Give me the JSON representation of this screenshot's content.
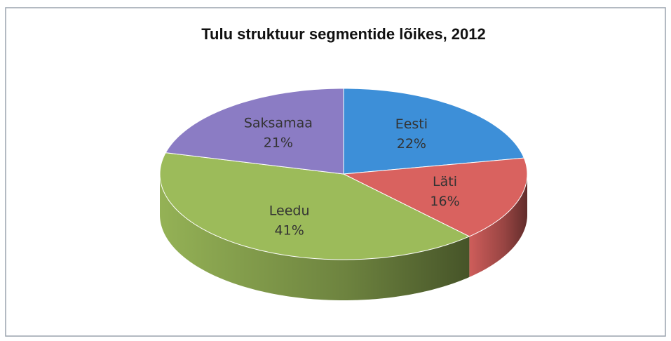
{
  "chart_data": {
    "type": "pie",
    "title": "Tulu struktuur segmentide lõikes, 2012",
    "categories": [
      "Eesti",
      "Läti",
      "Leedu",
      "Saksamaa"
    ],
    "values": [
      22,
      16,
      41,
      21
    ],
    "value_labels": [
      "22%",
      "16%",
      "41%",
      "21%"
    ],
    "colors": [
      "#3d8fd8",
      "#d9625f",
      "#9cbb5a",
      "#8b7cc4"
    ]
  }
}
